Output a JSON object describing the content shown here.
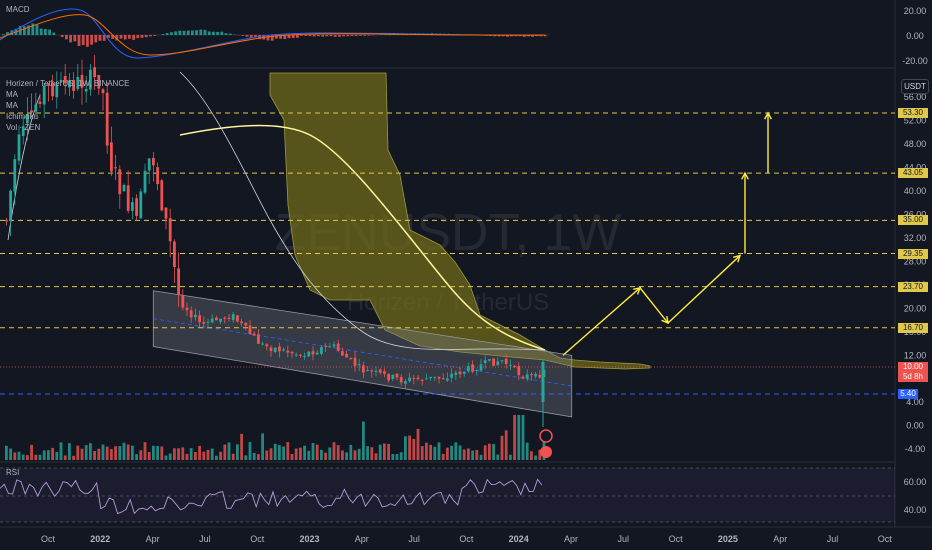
{
  "header": {
    "macd_label": "MACD",
    "main_title": "Horizen / TetherUS, 1W, BINANCE",
    "indicators": [
      "MA",
      "MA",
      "Ichimoku",
      "Vol · ZEN"
    ],
    "rsi_label": "RSI",
    "currency_button": "USDT"
  },
  "watermark": {
    "symbol": "ZENUSDT, 1W",
    "name": "Horizen / TetherUS"
  },
  "price_axis": {
    "ticks": [
      "56.00",
      "52.00",
      "48.00",
      "44.00",
      "40.00",
      "36.00",
      "32.00",
      "28.00",
      "24.00",
      "20.00",
      "16.00",
      "12.00",
      "8.00",
      "4.00",
      "0.00",
      "-4.00"
    ],
    "macd_ticks": [
      "20.00",
      "0.00",
      "-20.00"
    ],
    "rsi_ticks": [
      "60.00",
      "40.00"
    ]
  },
  "levels": {
    "labels": [
      "53.30",
      "43.05",
      "35.00",
      "29.35",
      "23.70",
      "16.70"
    ],
    "current_price": "10.00",
    "countdown": "5d 8h",
    "low_level": "5.40",
    "level_color": "#e0c84a"
  },
  "time_axis": [
    "Oct",
    "2022",
    "Apr",
    "Jul",
    "Oct",
    "2023",
    "Apr",
    "Jul",
    "Oct",
    "2024",
    "Apr",
    "Jul",
    "Oct",
    "2025",
    "Apr",
    "Jul",
    "Oct"
  ],
  "chart_data": {
    "type": "candlestick",
    "title": "Horizen / TetherUS, 1W, BINANCE",
    "y_unit": "USDT",
    "ylim": [
      -6,
      57
    ],
    "horizontal_levels": [
      53.3,
      43.05,
      35.0,
      29.35,
      23.7,
      16.7,
      5.4
    ],
    "current_price": 10.0,
    "projected_path": [
      {
        "date": "2024-02",
        "price": 12.0
      },
      {
        "date": "2024-07",
        "price": 23.5
      },
      {
        "date": "2024-10",
        "price": 17.5
      },
      {
        "date": "2025-01",
        "price": 29.0
      },
      {
        "date": "2025-01",
        "price": 43.0
      },
      {
        "date": "2025-03",
        "price": 43.0
      },
      {
        "date": "2025-03",
        "price": 53.3
      }
    ],
    "down_channel": {
      "upper": [
        {
          "date": "2022-04",
          "price": 23.0
        },
        {
          "date": "2024-04",
          "price": 12.0
        }
      ],
      "lower": [
        {
          "date": "2022-04",
          "price": 13.5
        },
        {
          "date": "2024-04",
          "price": 1.5
        }
      ]
    },
    "colors": {
      "up": "#26a69a",
      "down": "#ef5350",
      "projection": "#ffeb3b",
      "cloud": "#6e6a1a"
    }
  }
}
